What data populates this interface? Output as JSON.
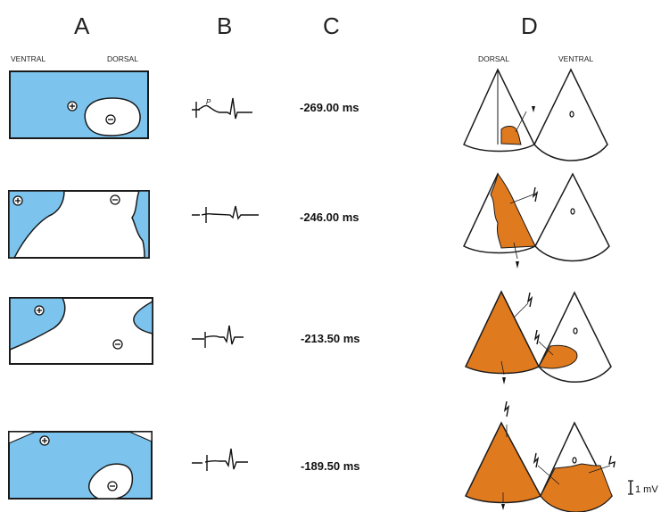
{
  "panels": [
    "A",
    "B",
    "C",
    "D"
  ],
  "orientation_a": {
    "left": "VENTRAL",
    "right": "DORSAL"
  },
  "orientation_d": {
    "left": "DORSAL",
    "right": "VENTRAL"
  },
  "p_wave_label": "P",
  "times": [
    "-269.00 ms",
    "-246.00 ms",
    "-213.50 ms",
    "-189.50 ms"
  ],
  "scale_bar_label": "1 mV",
  "colors": {
    "map_fill": "#7cc4ee",
    "activation": "#e07a1f",
    "outline": "#1a1a1a"
  },
  "icons": [
    "plus-extremum-icon",
    "minus-extremum-icon",
    "zero-marker-icon",
    "electrogram-icon"
  ]
}
